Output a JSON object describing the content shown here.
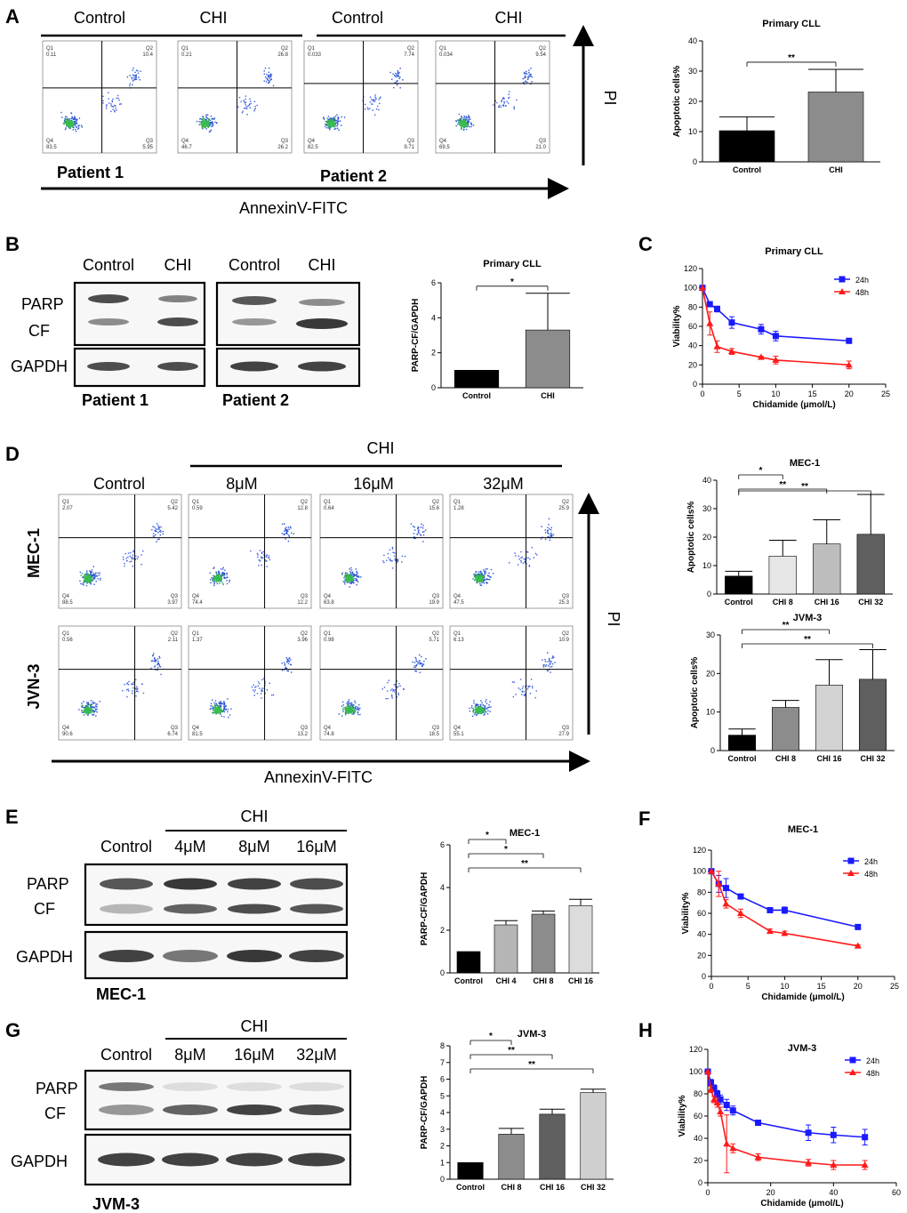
{
  "panels": {
    "A": {
      "letter": "A",
      "headers": [
        "Control",
        "CHI",
        "Control",
        "CHI"
      ],
      "patients": [
        "Patient 1",
        "Patient 2"
      ],
      "x_axis": "AnnexinV-FITC",
      "y_axis": "PI",
      "plots": [
        {
          "q": [
            "0.11",
            "10.4",
            "83.5",
            "5.95"
          ]
        },
        {
          "q": [
            "0.21",
            "26.8",
            "46.7",
            "26.2"
          ]
        },
        {
          "q": [
            "0.033",
            "7.74",
            "82.5",
            "9.71"
          ]
        },
        {
          "q": [
            "0.034",
            "9.54",
            "69.5",
            "21.0"
          ]
        }
      ]
    },
    "B": {
      "letter": "B",
      "headers": [
        "Control",
        "CHI",
        "Control",
        "CHI"
      ],
      "bands": [
        "PARP",
        "CF",
        "GAPDH"
      ],
      "patients": [
        "Patient 1",
        "Patient 2"
      ]
    },
    "C": {
      "letter": "C"
    },
    "D": {
      "letter": "D",
      "chi": "CHI",
      "headers": [
        "Control",
        "8μM",
        "16μM",
        "32μM"
      ],
      "rows": [
        "MEC-1",
        "JVN-3"
      ],
      "x_axis": "AnnexinV-FITC",
      "y_axis": "PI",
      "plots": [
        {
          "q": [
            "2.07",
            "5.42",
            "88.5",
            "3.97"
          ]
        },
        {
          "q": [
            "0.59",
            "12.8",
            "74.4",
            "12.2"
          ]
        },
        {
          "q": [
            "0.64",
            "15.6",
            "63.8",
            "19.9"
          ]
        },
        {
          "q": [
            "1.28",
            "25.9",
            "47.5",
            "25.3"
          ]
        },
        {
          "q": [
            "0.56",
            "2.11",
            "90.6",
            "6.74"
          ]
        },
        {
          "q": [
            "1.37",
            "3.96",
            "81.5",
            "13.2"
          ]
        },
        {
          "q": [
            "0.98",
            "5.71",
            "74.8",
            "18.5"
          ]
        },
        {
          "q": [
            "6.13",
            "10.9",
            "55.1",
            "27.9"
          ]
        }
      ]
    },
    "E": {
      "letter": "E",
      "chi": "CHI",
      "headers": [
        "Control",
        "4μM",
        "8μM",
        "16μM"
      ],
      "bands": [
        "PARP",
        "CF",
        "GAPDH"
      ],
      "cell": "MEC-1"
    },
    "F": {
      "letter": "F"
    },
    "G": {
      "letter": "G",
      "chi": "CHI",
      "headers": [
        "Control",
        "8μM",
        "16μM",
        "32μM"
      ],
      "bands": [
        "PARP",
        "CF",
        "GAPDH"
      ],
      "cell": "JVM-3"
    },
    "H": {
      "letter": "H"
    }
  },
  "chart_data": [
    {
      "id": "A-bar",
      "type": "bar",
      "title": "Primary CLL",
      "categories": [
        "Control",
        "CHI"
      ],
      "values": [
        10.3,
        23.1
      ],
      "errors": [
        4.6,
        7.5
      ],
      "colors": [
        "#000000",
        "#8c8c8c"
      ],
      "ylabel": "Apoptotic cells%",
      "ylim": [
        0,
        40
      ],
      "yticks": [
        0,
        10,
        20,
        30,
        40
      ],
      "sig": [
        {
          "from": 0,
          "to": 1,
          "label": "**"
        }
      ]
    },
    {
      "id": "B-bar",
      "type": "bar",
      "title": "Primary CLL",
      "categories": [
        "Control",
        "CHI"
      ],
      "values": [
        1.0,
        3.3
      ],
      "errors": [
        0,
        2.1
      ],
      "colors": [
        "#000000",
        "#8c8c8c"
      ],
      "ylabel": "PARP-CF/GAPDH",
      "ylim": [
        0,
        6
      ],
      "yticks": [
        0,
        2,
        4,
        6
      ],
      "sig": [
        {
          "from": 0,
          "to": 1,
          "label": "*"
        }
      ]
    },
    {
      "id": "C-line",
      "type": "line",
      "title": "Primary CLL",
      "xlabel": "Chidamide (μmol/L)",
      "ylabel": "Viability%",
      "xlim": [
        0,
        25
      ],
      "ylim": [
        0,
        120
      ],
      "xticks": [
        0,
        5,
        10,
        15,
        20,
        25
      ],
      "yticks": [
        0,
        20,
        40,
        60,
        80,
        100,
        120
      ],
      "series": [
        {
          "name": "24h",
          "color": "#1a1aff",
          "marker": "square",
          "x": [
            0,
            1,
            2,
            4,
            8,
            10,
            20
          ],
          "y": [
            100,
            83,
            78,
            64,
            57,
            50,
            45
          ],
          "err": [
            0,
            2,
            3,
            6,
            5,
            5,
            1
          ]
        },
        {
          "name": "48h",
          "color": "#ff1a1a",
          "marker": "triangle",
          "x": [
            0,
            1,
            2,
            4,
            8,
            10,
            20
          ],
          "y": [
            100,
            63,
            39,
            34,
            28,
            25,
            20
          ],
          "err": [
            0,
            12,
            6,
            3,
            1,
            4,
            4
          ]
        }
      ]
    },
    {
      "id": "D-mec",
      "type": "bar",
      "title": "MEC-1",
      "categories": [
        "Control",
        "CHI 8",
        "CHI 16",
        "CHI 32"
      ],
      "values": [
        6.3,
        13.3,
        17.6,
        21.0
      ],
      "errors": [
        1.7,
        5.6,
        8.5,
        14.0
      ],
      "colors": [
        "#000000",
        "#e6e6e6",
        "#bdbdbd",
        "#5f5f5f"
      ],
      "ylabel": "Apoptotic cells%",
      "ylim": [
        0,
        40
      ],
      "yticks": [
        0,
        10,
        20,
        30,
        40
      ],
      "sig": [
        {
          "from": 0,
          "to": 1,
          "label": "*"
        },
        {
          "from": 0,
          "to": 2,
          "label": "**"
        },
        {
          "from": 0,
          "to": 3,
          "label": "**"
        }
      ]
    },
    {
      "id": "D-jvm",
      "type": "bar",
      "title": "JVM-3",
      "categories": [
        "Control",
        "CHI 8",
        "CHI 16",
        "CHI 32"
      ],
      "values": [
        4.0,
        11.2,
        17.0,
        18.5
      ],
      "errors": [
        1.6,
        1.8,
        6.6,
        7.7
      ],
      "colors": [
        "#000000",
        "#8c8c8c",
        "#d2d2d2",
        "#5f5f5f"
      ],
      "ylabel": "Apoptotic cells%",
      "ylim": [
        0,
        30
      ],
      "yticks": [
        0,
        10,
        20,
        30
      ],
      "sig": [
        {
          "from": 0,
          "to": 2,
          "label": "**"
        },
        {
          "from": 0,
          "to": 3,
          "label": "**"
        }
      ]
    },
    {
      "id": "E-bar",
      "type": "bar",
      "title": "MEC-1",
      "categories": [
        "Control",
        "CHI 4",
        "CHI 8",
        "CHI 16"
      ],
      "values": [
        1.0,
        2.25,
        2.75,
        3.15
      ],
      "errors": [
        0,
        0.2,
        0.15,
        0.3
      ],
      "colors": [
        "#000000",
        "#b5b5b5",
        "#8c8c8c",
        "#dcdcdc"
      ],
      "ylabel": "PARP-CF/GAPDH",
      "ylim": [
        0,
        6
      ],
      "yticks": [
        0,
        2,
        4,
        6
      ],
      "sig": [
        {
          "from": 0,
          "to": 1,
          "label": "*"
        },
        {
          "from": 0,
          "to": 2,
          "label": "*"
        },
        {
          "from": 0,
          "to": 3,
          "label": "**"
        }
      ]
    },
    {
      "id": "F-line",
      "type": "line",
      "title": "MEC-1",
      "xlabel": "Chidamide (μmol/L)",
      "ylabel": "Viability%",
      "xlim": [
        0,
        25
      ],
      "ylim": [
        0,
        120
      ],
      "xticks": [
        0,
        5,
        10,
        15,
        20,
        25
      ],
      "yticks": [
        0,
        20,
        40,
        60,
        80,
        100,
        120
      ],
      "series": [
        {
          "name": "24h",
          "color": "#1a1aff",
          "marker": "square",
          "x": [
            0,
            1,
            2,
            4,
            8,
            10,
            20
          ],
          "y": [
            100,
            88,
            84,
            76,
            63,
            63,
            47
          ],
          "err": [
            0,
            8,
            9,
            2,
            1,
            3,
            1
          ]
        },
        {
          "name": "48h",
          "color": "#ff1a1a",
          "marker": "triangle",
          "x": [
            0,
            1,
            2,
            4,
            8,
            10,
            20
          ],
          "y": [
            100,
            88,
            69,
            60,
            43,
            41,
            29
          ],
          "err": [
            0,
            12,
            4,
            4,
            2,
            2,
            1
          ]
        }
      ]
    },
    {
      "id": "G-bar",
      "type": "bar",
      "title": "JVM-3",
      "categories": [
        "Control",
        "CHI 8",
        "CHI 16",
        "CHI 32"
      ],
      "values": [
        1.0,
        2.7,
        3.9,
        5.2
      ],
      "errors": [
        0,
        0.35,
        0.3,
        0.2
      ],
      "colors": [
        "#000000",
        "#8c8c8c",
        "#5f5f5f",
        "#cfcfcf"
      ],
      "ylabel": "PARP-CF/GAPDH",
      "ylim": [
        0,
        8
      ],
      "yticks": [
        0,
        1,
        2,
        3,
        4,
        5,
        6,
        7,
        8
      ],
      "sig": [
        {
          "from": 0,
          "to": 1,
          "label": "*"
        },
        {
          "from": 0,
          "to": 2,
          "label": "**"
        },
        {
          "from": 0,
          "to": 3,
          "label": "**"
        }
      ]
    },
    {
      "id": "H-line",
      "type": "line",
      "title": "JVM-3",
      "xlabel": "Chidamide (μmol/L)",
      "ylabel": "Viability%",
      "xlim": [
        0,
        60
      ],
      "ylim": [
        0,
        120
      ],
      "xticks": [
        0,
        20,
        40,
        60
      ],
      "yticks": [
        0,
        20,
        40,
        60,
        80,
        100,
        120
      ],
      "series": [
        {
          "name": "24h",
          "color": "#1a1aff",
          "marker": "square",
          "x": [
            0,
            1,
            2,
            3,
            4,
            6,
            8,
            16,
            32,
            40,
            50
          ],
          "y": [
            100,
            90,
            85,
            80,
            75,
            70,
            65,
            54,
            45,
            43,
            41
          ],
          "err": [
            0,
            3,
            3,
            3,
            4,
            5,
            4,
            2,
            7,
            7,
            7
          ]
        },
        {
          "name": "48h",
          "color": "#ff1a1a",
          "marker": "triangle",
          "x": [
            0,
            1,
            2,
            3,
            4,
            6,
            8,
            16,
            32,
            40,
            50
          ],
          "y": [
            100,
            84,
            75,
            72,
            64,
            35,
            31,
            23,
            18,
            16,
            16
          ],
          "err": [
            0,
            3,
            3,
            4,
            4,
            26,
            4,
            3,
            3,
            4,
            4
          ]
        }
      ]
    }
  ]
}
